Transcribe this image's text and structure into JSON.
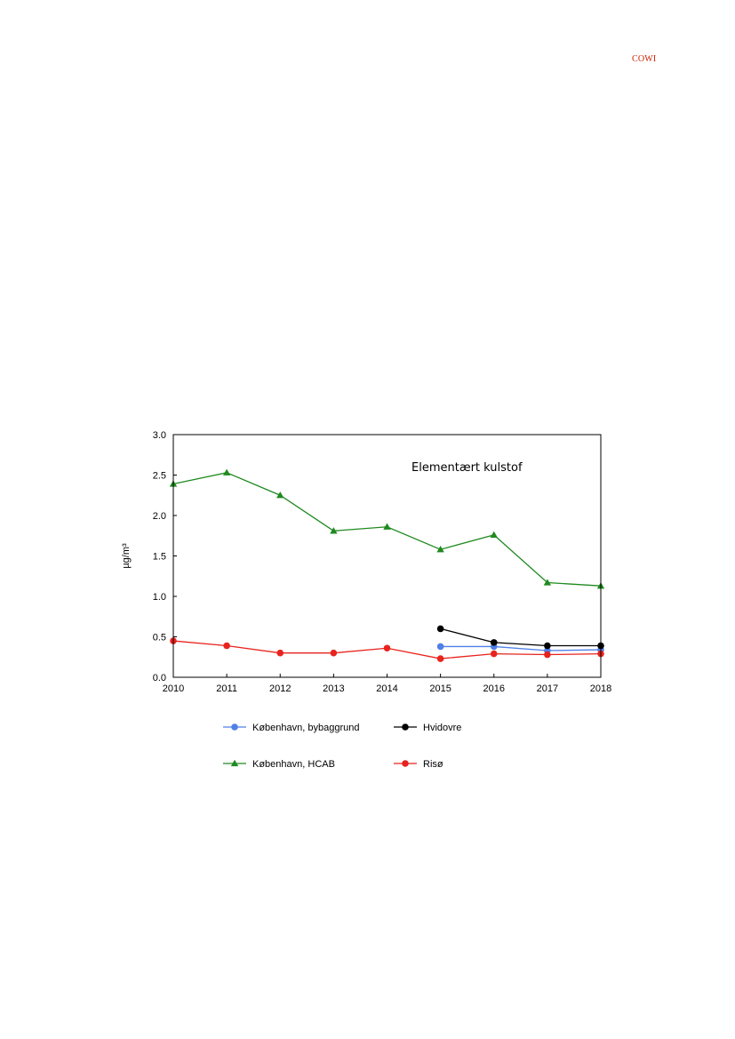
{
  "header": {
    "logo_text": "COWI"
  },
  "chart_data": {
    "type": "line",
    "annotation": "Elementært kulstof",
    "ylabel": "µg/m³",
    "xlabel": "",
    "x": [
      2010,
      2011,
      2012,
      2013,
      2014,
      2015,
      2016,
      2017,
      2018
    ],
    "xlim": [
      2010,
      2018
    ],
    "ylim": [
      0,
      3.0
    ],
    "yticks": [
      "0.0",
      "0.5",
      "1.0",
      "1.5",
      "2.0",
      "2.5",
      "3.0"
    ],
    "grid": false,
    "legend_position": "below",
    "series": [
      {
        "name": "København, bybaggrund",
        "color": "#4f7fe8",
        "marker": "circle",
        "x": [
          2015,
          2016,
          2017,
          2018
        ],
        "values": [
          0.38,
          0.38,
          0.33,
          0.34
        ]
      },
      {
        "name": "Hvidovre",
        "color": "#000000",
        "marker": "circle",
        "x": [
          2015,
          2016,
          2017,
          2018
        ],
        "values": [
          0.6,
          0.43,
          0.39,
          0.39
        ]
      },
      {
        "name": "København, HCAB",
        "color": "#1f8a1f",
        "marker": "triangle",
        "x": [
          2010,
          2011,
          2012,
          2013,
          2014,
          2015,
          2016,
          2017,
          2018
        ],
        "values": [
          2.39,
          2.53,
          2.25,
          1.81,
          1.86,
          1.58,
          1.76,
          1.17,
          1.13
        ]
      },
      {
        "name": "Risø",
        "color": "#e8231d",
        "marker": "circle",
        "x": [
          2010,
          2011,
          2012,
          2013,
          2014,
          2015,
          2016,
          2017,
          2018
        ],
        "values": [
          0.45,
          0.39,
          0.3,
          0.3,
          0.36,
          0.23,
          0.29,
          0.28,
          0.29
        ]
      }
    ]
  }
}
